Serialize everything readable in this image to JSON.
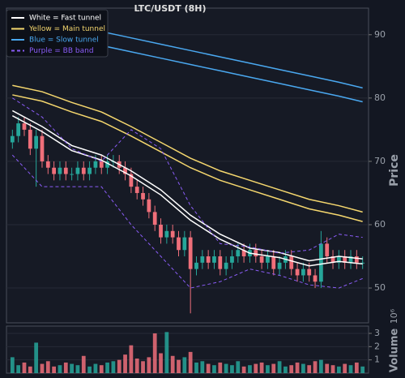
{
  "chart_data": {
    "type": "candlestick",
    "title": "LTC/USDT (8H)",
    "ylabel": "Price",
    "volume_label": "Volume",
    "volume_offset": "10⁶",
    "legend": "upper left",
    "up_color": "#26a69a",
    "down_color": "#ef6f7a",
    "x": [
      0,
      1,
      2,
      3,
      4,
      5,
      6,
      7,
      8,
      9,
      10,
      11,
      12,
      13,
      14,
      15,
      16,
      17,
      18,
      19,
      20,
      21,
      22,
      23,
      24,
      25,
      26,
      27,
      28,
      29,
      30,
      31,
      32,
      33,
      34,
      35,
      36,
      37,
      38,
      39,
      40,
      41,
      42,
      43,
      44,
      45,
      46,
      47,
      48,
      49,
      50,
      51,
      52,
      53,
      54,
      55,
      56,
      57,
      58,
      59
    ],
    "xlim": [
      -1,
      60
    ],
    "open": [
      73,
      74,
      76,
      75,
      72,
      74,
      70,
      69,
      68,
      69,
      68,
      68,
      69,
      68,
      69,
      70,
      69,
      70,
      70,
      69,
      68,
      66,
      65,
      64,
      62,
      60,
      58,
      59,
      58,
      56,
      58,
      53,
      54,
      55,
      54,
      55,
      53,
      54,
      55,
      56,
      55,
      56,
      55,
      54,
      55,
      53,
      54,
      55,
      53,
      52,
      53,
      52,
      51,
      57,
      55,
      54,
      55,
      54,
      55,
      54
    ],
    "high": [
      75,
      77,
      77,
      76,
      75,
      75,
      71,
      70,
      70,
      70,
      69,
      70,
      70,
      70,
      71,
      71,
      71,
      71,
      71,
      70,
      69,
      67,
      66,
      65,
      63,
      61,
      60,
      60,
      59,
      59,
      59,
      55,
      56,
      56,
      56,
      56,
      55,
      56,
      57,
      57,
      57,
      57,
      56,
      56,
      56,
      55,
      56,
      56,
      54,
      54,
      54,
      53,
      59,
      58,
      56,
      56,
      56,
      56,
      56,
      55
    ],
    "low": [
      72,
      73,
      74,
      71,
      66,
      69,
      68,
      67,
      67,
      67,
      67,
      67,
      67,
      67,
      68,
      68,
      68,
      69,
      68,
      67,
      65,
      64,
      63,
      61,
      59,
      57,
      57,
      57,
      55,
      55,
      46,
      52,
      53,
      53,
      53,
      52,
      52,
      53,
      54,
      54,
      54,
      54,
      53,
      53,
      52,
      52,
      53,
      52,
      51,
      51,
      51,
      50,
      50,
      54,
      53,
      53,
      53,
      53,
      53,
      53
    ],
    "close": [
      74,
      76,
      75,
      72,
      74,
      70,
      69,
      68,
      69,
      68,
      68,
      69,
      68,
      69,
      70,
      69,
      70,
      70,
      69,
      68,
      66,
      65,
      64,
      62,
      60,
      58,
      59,
      58,
      56,
      58,
      53,
      54,
      55,
      54,
      55,
      53,
      54,
      55,
      56,
      55,
      56,
      55,
      54,
      55,
      53,
      54,
      55,
      53,
      52,
      53,
      52,
      51,
      57,
      55,
      54,
      55,
      54,
      55,
      54,
      54
    ],
    "volume": [
      1.2,
      0.6,
      0.8,
      0.5,
      2.3,
      0.7,
      0.9,
      0.5,
      0.6,
      0.8,
      0.7,
      0.6,
      1.3,
      0.5,
      0.7,
      0.6,
      0.8,
      0.9,
      1.0,
      1.4,
      2.1,
      1.1,
      0.9,
      1.2,
      3.0,
      1.5,
      3.1,
      1.3,
      1.0,
      1.2,
      1.6,
      0.8,
      0.9,
      0.7,
      0.6,
      0.8,
      0.7,
      0.6,
      0.9,
      0.5,
      0.6,
      0.7,
      0.8,
      0.6,
      0.7,
      0.9,
      0.5,
      0.6,
      0.8,
      0.7,
      0.6,
      0.9,
      1.0,
      0.7,
      0.6,
      0.5,
      0.7,
      0.6,
      0.8,
      0.5
    ],
    "line_x": [
      0,
      5,
      10,
      15,
      20,
      25,
      30,
      35,
      40,
      45,
      50,
      55,
      59
    ],
    "tunnels": [
      {
        "name": "White = Fast tunnel",
        "color": "#ffffff",
        "dashed": false,
        "upper": [
          78,
          75.5,
          72.5,
          71,
          68.5,
          65.5,
          61.5,
          58.5,
          56.3,
          55.6,
          54.3,
          55,
          54.6
        ],
        "lower": [
          77.2,
          74.7,
          71.7,
          70.2,
          67.7,
          64.7,
          60.7,
          57.7,
          55.5,
          54.8,
          53.5,
          54.2,
          53.8
        ]
      },
      {
        "name": "Yellow = Main tunnel",
        "color": "#f5d76e",
        "dashed": false,
        "upper": [
          82,
          81,
          79.3,
          77.8,
          75.5,
          73,
          70.5,
          68.5,
          67,
          65.5,
          64,
          63,
          62
        ],
        "lower": [
          80.5,
          79.5,
          77.8,
          76.3,
          74,
          71.5,
          69,
          67,
          65.5,
          64,
          62.5,
          61.5,
          60.5
        ]
      },
      {
        "name": "Blue = Slow tunnel",
        "color": "#4aa8f0",
        "dashed": false,
        "upper": [
          93.2,
          92.4,
          91.5,
          90.5,
          89.5,
          88.5,
          87.5,
          86.5,
          85.5,
          84.5,
          83.5,
          82.5,
          81.6
        ],
        "lower": [
          91,
          90.2,
          89.3,
          88.3,
          87.3,
          86.3,
          85.3,
          84.3,
          83.3,
          82.3,
          81.3,
          80.3,
          79.4
        ]
      },
      {
        "name": "Purple = BB band",
        "color": "#8a5cf6",
        "dashed": true,
        "upper": [
          80,
          77,
          72,
          70,
          75,
          72,
          63,
          57,
          56.5,
          55.5,
          56,
          58.5,
          58
        ],
        "lower": [
          71,
          66,
          66,
          66,
          60,
          55,
          50,
          51,
          53,
          52,
          50.5,
          50,
          51.5
        ]
      }
    ],
    "ylim": [
      44.5,
      94.2
    ],
    "yticks": [
      50,
      60,
      70,
      80,
      90
    ],
    "volume_ylim": [
      0,
      3.55
    ],
    "volume_ticks": [
      1,
      2,
      3
    ],
    "grid": true
  }
}
